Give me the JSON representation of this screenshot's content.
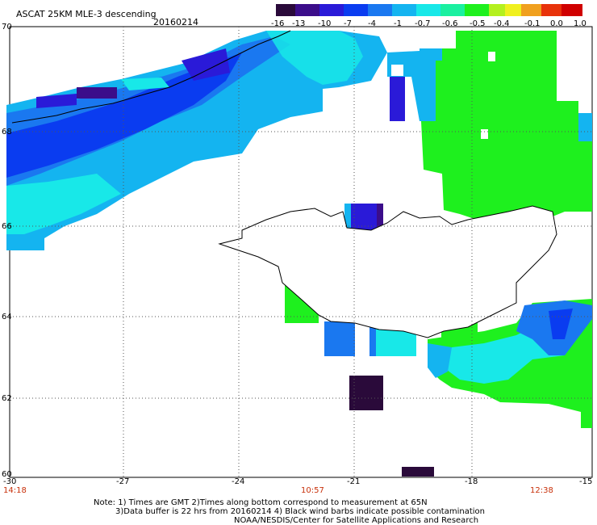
{
  "header": {
    "title": "ASCAT 25KM MLE-3 descending",
    "date": "20160214"
  },
  "colorbar": {
    "labels": [
      "-16",
      "-13",
      "-10",
      "-7",
      "-4",
      "-1",
      "-0.7",
      "-0.6",
      "-0.5",
      "-0.4",
      "-0.1",
      "0.0",
      "1.0"
    ],
    "colors": [
      "#2a0a3a",
      "#3b0d8a",
      "#2a1ad8",
      "#0a3cf0",
      "#1a78f0",
      "#14b4f0",
      "#18e8e8",
      "#1af0a0",
      "#1ef01e",
      "#b4f01e",
      "#f0f01e",
      "#f0a01e",
      "#e8320a",
      "#d00000"
    ]
  },
  "axes": {
    "lat_labels": [
      "70",
      "68",
      "66",
      "64",
      "62",
      "60"
    ],
    "lon_labels": [
      "-30",
      "-27",
      "-24",
      "-21",
      "-18",
      "-15"
    ],
    "time_labels": [
      "14:18",
      "10:57",
      "12:38"
    ]
  },
  "notes": {
    "line1": "Note: 1) Times are GMT 2)Times along bottom correspond to measurement at 65N",
    "line2": "3)Data buffer is 22 hrs from 20160214 4) Black wind barbs indicate possible contamination",
    "line3": "NOAA/NESDIS/Center for Satellite Applications and Research"
  }
}
